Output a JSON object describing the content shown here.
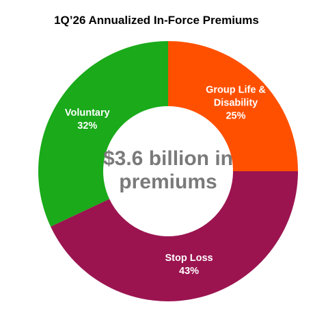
{
  "chart_data": {
    "type": "donut",
    "title": "1Q’26 Annualized In-Force Premiums",
    "center_label": "$3.6 billion in premiums",
    "categories": [
      "Group Life & Disability",
      "Stop Loss",
      "Voluntary"
    ],
    "values": [
      25,
      43,
      32
    ],
    "value_labels": [
      "25%",
      "43%",
      "32%"
    ],
    "colors": [
      "#ff5000",
      "#9b1450",
      "#1aaa1a"
    ]
  }
}
